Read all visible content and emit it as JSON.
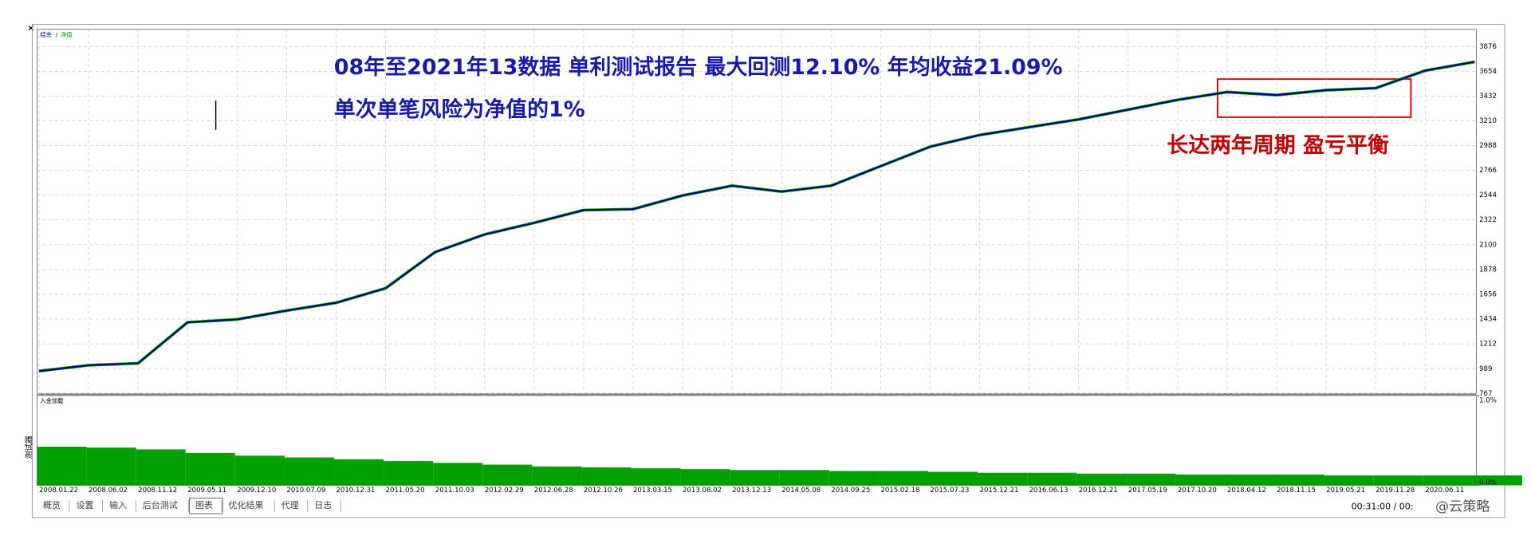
{
  "chart_data": [
    {
      "type": "line",
      "legend": [
        "结余",
        "净值"
      ],
      "categories": [
        "2008.01.22",
        "2008.06.02",
        "2008.11.12",
        "2009.05.11",
        "2009.12.10",
        "2010.07.09",
        "2010.12.31",
        "2011.05.20",
        "2011.10.03",
        "2012.02.29",
        "2012.06.28",
        "2012.10.26",
        "2013.03.15",
        "2013.08.02",
        "2013.12.13",
        "2014.05.08",
        "2014.09.25",
        "2015.02.18",
        "2015.07.23",
        "2015.12.21",
        "2016.06.13",
        "2016.12.21",
        "2017.05.19",
        "2017.10.20",
        "2018.04.12",
        "2018.11.15",
        "2019.05.21",
        "2019.11.28",
        "2020.06.11",
        null
      ],
      "series": [
        {
          "name": "净值",
          "color": "#00b000",
          "values": [
            968,
            1020,
            1038,
            1405,
            1431,
            1510,
            1580,
            1710,
            2034,
            2192,
            2296,
            2410,
            2419,
            2541,
            2629,
            2576,
            2629,
            2804,
            2978,
            3083,
            3153,
            3223,
            3310,
            3398,
            3468,
            3441,
            3485,
            3503,
            3660,
            3738
          ]
        },
        {
          "name": "结余",
          "color": "#000080",
          "values": [
            968,
            1020,
            1038,
            1405,
            1431,
            1510,
            1580,
            1710,
            2034,
            2192,
            2296,
            2410,
            2419,
            2541,
            2629,
            2576,
            2629,
            2804,
            2978,
            3083,
            3153,
            3223,
            3310,
            3398,
            3468,
            3441,
            3485,
            3503,
            3660,
            3738
          ]
        }
      ],
      "ylim": [
        767,
        4030
      ],
      "yticks": [
        767,
        989,
        1212,
        1434,
        1656,
        1878,
        2100,
        2322,
        2544,
        2766,
        2988,
        3210,
        3432,
        3654,
        3876
      ],
      "grid": true,
      "annotations": [
        "08年至2021年13数据  单利测试报告  最大回测12.10%   年均收益21.09%",
        "单次单笔风险为净值的1%",
        "长达两年周期  盈亏平衡"
      ]
    },
    {
      "type": "bar",
      "title": "入金加载",
      "color": "#00a000",
      "values": [
        0.43,
        0.42,
        0.4,
        0.36,
        0.33,
        0.31,
        0.29,
        0.27,
        0.25,
        0.23,
        0.21,
        0.2,
        0.19,
        0.18,
        0.17,
        0.17,
        0.16,
        0.16,
        0.15,
        0.14,
        0.14,
        0.13,
        0.13,
        0.12,
        0.12,
        0.12,
        0.11,
        0.11,
        0.11,
        0.11
      ],
      "ylim": [
        0,
        1
      ],
      "yticks": [
        {
          "value": 1,
          "label": "1.0%"
        },
        {
          "value": 0,
          "label": "0.0%"
        }
      ]
    }
  ],
  "side_label": "测试器",
  "tabs": [
    "概览",
    "设置",
    "输入",
    "后台测试",
    "图表",
    "优化结果",
    "代理",
    "日志"
  ],
  "active_tab": "图表",
  "status": "00:31:00 / 00:",
  "watermark": "@云策略"
}
